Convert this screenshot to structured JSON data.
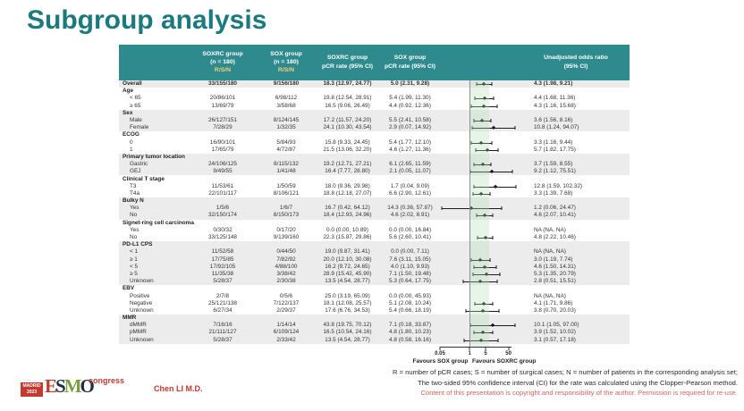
{
  "title": "Subgroup analysis",
  "table": {
    "header": {
      "soxrc_group": "SOXRC group",
      "sox_group": "SOX group",
      "n_label": "(n = 180)",
      "rsn_label": "R/S/N",
      "pcr_label": "pCR rate (95% CI)",
      "or_label_1": "Unadjusted odds ratio",
      "or_label_2": "(95% CI)"
    },
    "rows": [
      {
        "type": "overall",
        "shade": true,
        "label": "Overall",
        "rsn1": "33/155/180",
        "rsn2": "9/156/180",
        "pcr1": "18.3 (12.97, 24.77)",
        "pcr2": "5.0 (2.31, 9.28)",
        "or_text": "4.3 (1.98, 9.21)",
        "or": 4.3,
        "lo": 1.98,
        "hi": 9.21
      },
      {
        "type": "section",
        "shade": false,
        "label": "Age"
      },
      {
        "type": "item",
        "shade": false,
        "label": "< 65",
        "rsn1": "20/86/101",
        "rsn2": "6/98/112",
        "pcr1": "19.8 (12.54, 28.91)",
        "pcr2": "5.4 (1.99, 11.30)",
        "or_text": "4.4 (1.68, 11.36)",
        "or": 4.4,
        "lo": 1.68,
        "hi": 11.36
      },
      {
        "type": "item",
        "shade": false,
        "label": "≥ 65",
        "rsn1": "13/69/79",
        "rsn2": "3/58/68",
        "pcr1": "16.5 (9.06, 26.49)",
        "pcr2": "4.4 (0.92, 12.36)",
        "or_text": "4.3 (1.16, 15.68)",
        "or": 4.3,
        "lo": 1.16,
        "hi": 15.68
      },
      {
        "type": "section",
        "shade": true,
        "label": "Sex"
      },
      {
        "type": "item",
        "shade": true,
        "label": "Male",
        "rsn1": "26/127/151",
        "rsn2": "8/124/145",
        "pcr1": "17.2 (11.57, 24.20)",
        "pcr2": "5.5 (2.41, 10.58)",
        "or_text": "3.6 (1.56, 8.16)",
        "or": 3.6,
        "lo": 1.56,
        "hi": 8.16
      },
      {
        "type": "item",
        "shade": true,
        "label": "Female",
        "rsn1": "7/28/29",
        "rsn2": "1/32/35",
        "pcr1": "24.1 (10.30, 43.54)",
        "pcr2": "2.9 (0.07, 14.92)",
        "or_text": "10.8 (1.24, 94.07)",
        "or": 10.8,
        "lo": 1.24,
        "hi": 94.07
      },
      {
        "type": "section",
        "shade": false,
        "label": "ECOG"
      },
      {
        "type": "item",
        "shade": false,
        "label": "0",
        "rsn1": "16/90/101",
        "rsn2": "5/84/93",
        "pcr1": "15.8 (9.33, 24.45)",
        "pcr2": "5.4 (1.77, 12.10)",
        "or_text": "3.3 (1.16, 9.44)",
        "or": 3.3,
        "lo": 1.16,
        "hi": 9.44
      },
      {
        "type": "item",
        "shade": false,
        "label": "1",
        "rsn1": "17/65/79",
        "rsn2": "4/72/87",
        "pcr1": "21.5 (13.06, 32.20)",
        "pcr2": "4.6 (1.27, 11.36)",
        "or_text": "5.7 (1.82, 17.75)",
        "or": 5.7,
        "lo": 1.82,
        "hi": 17.75
      },
      {
        "type": "section",
        "shade": true,
        "label": "Primary tumor location"
      },
      {
        "type": "item",
        "shade": true,
        "label": "Gastric",
        "rsn1": "24/106/125",
        "rsn2": "8/115/132",
        "pcr1": "19.2 (12.71, 27.21)",
        "pcr2": "6.1 (2.65, 11.59)",
        "or_text": "3.7 (1.59, 8.55)",
        "or": 3.7,
        "lo": 1.59,
        "hi": 8.55
      },
      {
        "type": "item",
        "shade": true,
        "label": "GEJ",
        "rsn1": "9/49/55",
        "rsn2": "1/41/48",
        "pcr1": "16.4 (7.77, 28.80)",
        "pcr2": "2.1 (0.05, 11.07)",
        "or_text": "9.2 (1.12, 75.51)",
        "or": 9.2,
        "lo": 1.12,
        "hi": 75.51
      },
      {
        "type": "section",
        "shade": false,
        "label": "Clinical T stage"
      },
      {
        "type": "item",
        "shade": false,
        "label": "T3",
        "rsn1": "11/53/61",
        "rsn2": "1/50/59",
        "pcr1": "18.0 (9.36, 29.98)",
        "pcr2": "1.7 (0.04, 9.09)",
        "or_text": "12.8 (1.59, 102.32)",
        "or": 12.8,
        "lo": 1.59,
        "hi": 102.32
      },
      {
        "type": "item",
        "shade": false,
        "label": "T4a",
        "rsn1": "22/101/117",
        "rsn2": "8/106/121",
        "pcr1": "18.8 (12.18, 27.07)",
        "pcr2": "6.6 (2.90, 12.61)",
        "or_text": "3.3 (1.39, 7.68)",
        "or": 3.3,
        "lo": 1.39,
        "hi": 7.68
      },
      {
        "type": "section",
        "shade": true,
        "label": "Bulky N"
      },
      {
        "type": "item",
        "shade": true,
        "label": "Yes",
        "rsn1": "1/5/6",
        "rsn2": "1/6/7",
        "pcr1": "16.7 (0.42, 64.12)",
        "pcr2": "14.3 (0.36, 57.87)",
        "or_text": "1.2 (0.06, 24.47)",
        "or": 1.2,
        "lo": 0.06,
        "hi": 24.47
      },
      {
        "type": "item",
        "shade": true,
        "label": "No",
        "rsn1": "32/150/174",
        "rsn2": "8/150/173",
        "pcr1": "18.4 (12.93, 24.96)",
        "pcr2": "4.6 (2.02, 8.91)",
        "or_text": "4.6 (2.07, 10.41)",
        "or": 4.6,
        "lo": 2.07,
        "hi": 10.41
      },
      {
        "type": "section",
        "shade": false,
        "label": "Signet-ring cell carcinoma"
      },
      {
        "type": "item",
        "shade": false,
        "label": "Yes",
        "rsn1": "0/30/32",
        "rsn2": "0/17/20",
        "pcr1": "0.0 (0.00, 10.89)",
        "pcr2": "0.0 (0.00, 16.84)",
        "or_text": "NA (NA, NA)",
        "or": null
      },
      {
        "type": "item",
        "shade": false,
        "label": "No",
        "rsn1": "33/125/148",
        "rsn2": "9/139/160",
        "pcr1": "22.3 (15.87, 29.86)",
        "pcr2": "5.6 (2.60, 10.41)",
        "or_text": "4.8 (2.22, 10.46)",
        "or": 4.8,
        "lo": 2.22,
        "hi": 10.46
      },
      {
        "type": "section",
        "shade": true,
        "label": "PD-L1 CPS"
      },
      {
        "type": "item",
        "shade": true,
        "label": "< 1",
        "rsn1": "11/52/58",
        "rsn2": "0/44/50",
        "pcr1": "19.0 (9.87, 31.41)",
        "pcr2": "0.0 (0.00, 7.11)",
        "or_text": "NA (NA, NA)",
        "or": null
      },
      {
        "type": "item",
        "shade": true,
        "label": "≥ 1",
        "rsn1": "17/75/85",
        "rsn2": "7/82/92",
        "pcr1": "20.0 (12.10, 30.08)",
        "pcr2": "7.6 (3.11, 15.05)",
        "or_text": "3.0 (1.19, 7.74)",
        "or": 3.0,
        "lo": 1.19,
        "hi": 7.74
      },
      {
        "type": "item",
        "shade": true,
        "label": "< 5",
        "rsn1": "17/92/105",
        "rsn2": "4/88/100",
        "pcr1": "16.2 (9.72, 24.65)",
        "pcr2": "4.0 (1.10, 9.93)",
        "or_text": "4.6 (1.50, 14.31)",
        "or": 4.6,
        "lo": 1.5,
        "hi": 14.31
      },
      {
        "type": "item",
        "shade": true,
        "label": "≥ 5",
        "rsn1": "11/35/38",
        "rsn2": "3/38/42",
        "pcr1": "28.9 (15.42, 45.90)",
        "pcr2": "7.1 (1.50, 19.48)",
        "or_text": "5.3 (1.35, 20.79)",
        "or": 5.3,
        "lo": 1.35,
        "hi": 20.79
      },
      {
        "type": "item",
        "shade": true,
        "label": "Unknown",
        "rsn1": "5/28/37",
        "rsn2": "2/30/38",
        "pcr1": "13.5 (4.54, 28.77)",
        "pcr2": "5.3 (0.64, 17.75)",
        "or_text": "2.8 (0.51, 15.51)",
        "or": 2.8,
        "lo": 0.51,
        "hi": 15.51
      },
      {
        "type": "section",
        "shade": false,
        "label": "EBV"
      },
      {
        "type": "item",
        "shade": false,
        "label": "Positive",
        "rsn1": "2/7/8",
        "rsn2": "0/5/6",
        "pcr1": "25.0 (3.19, 65.09)",
        "pcr2": "0.0 (0.00, 45.93)",
        "or_text": "NA (NA, NA)",
        "or": null
      },
      {
        "type": "item",
        "shade": false,
        "label": "Negative",
        "rsn1": "25/121/138",
        "rsn2": "7/122/137",
        "pcr1": "18.1 (12.08, 25.57)",
        "pcr2": "5.1 (2.08, 10.24)",
        "or_text": "4.1 (1.71, 9.86)",
        "or": 4.1,
        "lo": 1.71,
        "hi": 9.86
      },
      {
        "type": "item",
        "shade": false,
        "label": "Unknown",
        "rsn1": "6/27/34",
        "rsn2": "2/29/37",
        "pcr1": "17.6 (6.76, 34.53)",
        "pcr2": "5.4 (0.66, 18.19)",
        "or_text": "3.8 (0.70, 20.03)",
        "or": 3.8,
        "lo": 0.7,
        "hi": 20.03
      },
      {
        "type": "section",
        "shade": true,
        "label": "MMR"
      },
      {
        "type": "item",
        "shade": true,
        "label": "dMMR",
        "rsn1": "7/16/16",
        "rsn2": "1/14/14",
        "pcr1": "43.8 (19.75, 70.12)",
        "pcr2": "7.1 (0.18, 33.87)",
        "or_text": "10.1 (1.05, 97.00)",
        "or": 10.1,
        "lo": 1.05,
        "hi": 97.0
      },
      {
        "type": "item",
        "shade": true,
        "label": "pMMR",
        "rsn1": "21/111/127",
        "rsn2": "6/109/124",
        "pcr1": "16.5 (10.54, 24.16)",
        "pcr2": "4.8 (1.80, 10.23)",
        "or_text": "3.9 (1.52, 10.02)",
        "or": 3.9,
        "lo": 1.52,
        "hi": 10.02
      },
      {
        "type": "item",
        "shade": true,
        "label": "Unknown",
        "rsn1": "5/28/37",
        "rsn2": "2/33/42",
        "pcr1": "13.5 (4.54, 28.77)",
        "pcr2": "4.8 (0.58, 16.16)",
        "or_text": "3.1 (0.57, 17.18)",
        "or": 3.1,
        "lo": 0.57,
        "hi": 17.18
      }
    ]
  },
  "forest": {
    "min": 0.05,
    "max": 200,
    "ref": 1,
    "band": [
      1,
      7
    ],
    "ticks": [
      {
        "v": 0.05,
        "label": "0.05"
      },
      {
        "v": 1,
        "label": "1"
      },
      {
        "v": 5,
        "label": "5"
      },
      {
        "v": 50,
        "label": "50"
      }
    ]
  },
  "axis": {
    "favours_left": "Favours SOX group",
    "favours_right": "Favours SOXRC group"
  },
  "footnotes": {
    "line1": "R = number of pCR cases; S = number of surgical cases; N = number of patients in the corresponding analysis set;",
    "line2": "The two-sided 95% confidence interval (CI) for the rate was calculated using the Clopper-Pearson method.",
    "line3": "Content of this presentation is copyright and responsibility of the author. Permission is required for re-use."
  },
  "footer": {
    "madrid_line1": "MADRID",
    "madrid_line2": "2023",
    "esmo_e": "E",
    "esmo_s": "S",
    "esmo_m": "M",
    "esmo_o": "O",
    "congress": "congress",
    "presenter": "Chen LI M.D."
  },
  "colors": {
    "teal": "#1a7a7e",
    "header-bg": "#2f8a8e",
    "stripe": "#ececec",
    "rsn": "#efd27c",
    "red": "#c23b31",
    "foot-red": "#d4645c",
    "band": "#b7dfb9"
  },
  "chart_data": {
    "type": "scatter",
    "title": "Unadjusted odds ratio (95% CI) forest plot",
    "xlabel": "Odds ratio (log scale)",
    "xscale": "log",
    "xticks": [
      0.05,
      1,
      5,
      50
    ],
    "reference_line": 1,
    "legend_position": "none",
    "grid": false,
    "annotations": [
      "Favours SOX group",
      "Favours SOXRC group"
    ],
    "points": [
      {
        "label": "Overall",
        "or": 4.3,
        "lo": 1.98,
        "hi": 9.21
      },
      {
        "label": "Age < 65",
        "or": 4.4,
        "lo": 1.68,
        "hi": 11.36
      },
      {
        "label": "Age ≥ 65",
        "or": 4.3,
        "lo": 1.16,
        "hi": 15.68
      },
      {
        "label": "Male",
        "or": 3.6,
        "lo": 1.56,
        "hi": 8.16
      },
      {
        "label": "Female",
        "or": 10.8,
        "lo": 1.24,
        "hi": 94.07
      },
      {
        "label": "ECOG 0",
        "or": 3.3,
        "lo": 1.16,
        "hi": 9.44
      },
      {
        "label": "ECOG 1",
        "or": 5.7,
        "lo": 1.82,
        "hi": 17.75
      },
      {
        "label": "Gastric",
        "or": 3.7,
        "lo": 1.59,
        "hi": 8.55
      },
      {
        "label": "GEJ",
        "or": 9.2,
        "lo": 1.12,
        "hi": 75.51
      },
      {
        "label": "T3",
        "or": 12.8,
        "lo": 1.59,
        "hi": 102.32
      },
      {
        "label": "T4a",
        "or": 3.3,
        "lo": 1.39,
        "hi": 7.68
      },
      {
        "label": "Bulky N Yes",
        "or": 1.2,
        "lo": 0.06,
        "hi": 24.47
      },
      {
        "label": "Bulky N No",
        "or": 4.6,
        "lo": 2.07,
        "hi": 10.41
      },
      {
        "label": "Signet-ring Yes",
        "or": null,
        "lo": null,
        "hi": null
      },
      {
        "label": "Signet-ring No",
        "or": 4.8,
        "lo": 2.22,
        "hi": 10.46
      },
      {
        "label": "PD-L1 CPS < 1",
        "or": null,
        "lo": null,
        "hi": null
      },
      {
        "label": "PD-L1 CPS ≥ 1",
        "or": 3.0,
        "lo": 1.19,
        "hi": 7.74
      },
      {
        "label": "PD-L1 CPS < 5",
        "or": 4.6,
        "lo": 1.5,
        "hi": 14.31
      },
      {
        "label": "PD-L1 CPS ≥ 5",
        "or": 5.3,
        "lo": 1.35,
        "hi": 20.79
      },
      {
        "label": "PD-L1 CPS Unknown",
        "or": 2.8,
        "lo": 0.51,
        "hi": 15.51
      },
      {
        "label": "EBV Positive",
        "or": null,
        "lo": null,
        "hi": null
      },
      {
        "label": "EBV Negative",
        "or": 4.1,
        "lo": 1.71,
        "hi": 9.86
      },
      {
        "label": "EBV Unknown",
        "or": 3.8,
        "lo": 0.7,
        "hi": 20.03
      },
      {
        "label": "dMMR",
        "or": 10.1,
        "lo": 1.05,
        "hi": 97.0
      },
      {
        "label": "pMMR",
        "or": 3.9,
        "lo": 1.52,
        "hi": 10.02
      },
      {
        "label": "MMR Unknown",
        "or": 3.1,
        "lo": 0.57,
        "hi": 17.18
      }
    ]
  }
}
